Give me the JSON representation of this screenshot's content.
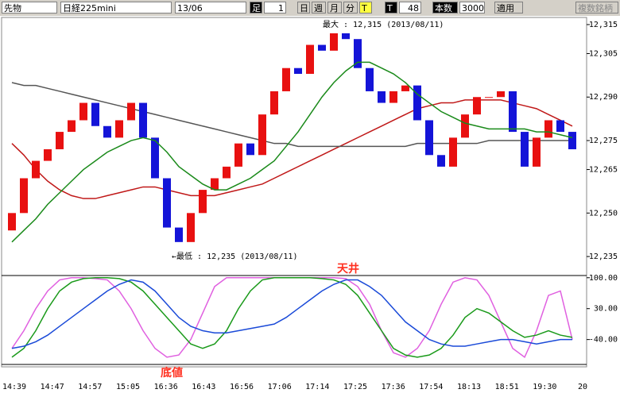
{
  "toolbar": [
    "先物",
    "日経225mini",
    "13/06",
    "足",
    "1",
    "日",
    "週",
    "月",
    "分",
    "T",
    "T",
    "48",
    "本数",
    "3000",
    "適用",
    "複数銘柄"
  ],
  "x_axis": {
    "labels": [
      "14:39",
      "14:47",
      "14:57",
      "15:05",
      "16:36",
      "16:43",
      "16:56",
      "17:06",
      "17:14",
      "17:25",
      "17:36",
      "17:54",
      "18:13",
      "18:51",
      "19:30",
      "20"
    ]
  },
  "chart_data": [
    {
      "type": "candlestick",
      "up_color": "#e81010",
      "down_color": "#1414d8",
      "open": [
        12244,
        12250,
        12262,
        12268,
        12272,
        12278,
        12282,
        12288,
        12280,
        12276,
        12282,
        12288,
        12276,
        12262,
        12245,
        12240,
        12250,
        12258,
        12262,
        12266,
        12274,
        12270,
        12284,
        12292,
        12300,
        12298,
        12308,
        12306,
        12312,
        12310,
        12300,
        12292,
        12288,
        12292,
        12294,
        12282,
        12270,
        12266,
        12276,
        12284,
        12290,
        12290,
        12292,
        12278,
        12266,
        12276,
        12282,
        12278
      ],
      "close": [
        12250,
        12262,
        12268,
        12272,
        12278,
        12282,
        12288,
        12280,
        12276,
        12282,
        12288,
        12276,
        12262,
        12245,
        12240,
        12250,
        12258,
        12262,
        12266,
        12274,
        12270,
        12284,
        12292,
        12300,
        12298,
        12308,
        12306,
        12312,
        12310,
        12300,
        12292,
        12288,
        12292,
        12294,
        12282,
        12270,
        12266,
        12276,
        12284,
        12290,
        12290,
        12292,
        12278,
        12266,
        12276,
        12282,
        12278,
        12272
      ],
      "series": [
        {
          "color": "#1a8a1a",
          "values": [
            12240,
            12244,
            12248,
            12253,
            12257,
            12261,
            12265,
            12268,
            12271,
            12273,
            12275,
            12276,
            12275,
            12271,
            12266,
            12263,
            12260,
            12258,
            12258,
            12260,
            12262,
            12265,
            12268,
            12273,
            12278,
            12284,
            12290,
            12295,
            12299,
            12302,
            12302,
            12300,
            12298,
            12295,
            12291,
            12288,
            12285,
            12283,
            12281,
            12280,
            12279,
            12279,
            12279,
            12279,
            12278,
            12278,
            12277,
            12276
          ]
        },
        {
          "color": "#c01818",
          "values": [
            12274,
            12270,
            12265,
            12261,
            12258,
            12256,
            12255,
            12255,
            12256,
            12257,
            12258,
            12259,
            12259,
            12258,
            12257,
            12256,
            12256,
            12256,
            12257,
            12258,
            12259,
            12260,
            12262,
            12264,
            12266,
            12268,
            12270,
            12272,
            12274,
            12276,
            12278,
            12280,
            12282,
            12284,
            12286,
            12287,
            12288,
            12288,
            12289,
            12289,
            12289,
            12289,
            12288,
            12287,
            12286,
            12284,
            12282,
            12280
          ]
        },
        {
          "color": "#555555",
          "values": [
            12295,
            12294,
            12294,
            12293,
            12292,
            12291,
            12290,
            12289,
            12288,
            12287,
            12286,
            12285,
            12284,
            12283,
            12282,
            12281,
            12280,
            12279,
            12278,
            12277,
            12276,
            12275,
            12274,
            12274,
            12273,
            12273,
            12273,
            12273,
            12273,
            12273,
            12273,
            12273,
            12273,
            12273,
            12274,
            12274,
            12274,
            12274,
            12274,
            12274,
            12275,
            12275,
            12275,
            12275,
            12275,
            12275,
            12275,
            12275
          ]
        }
      ],
      "ylim": [
        12229,
        12318
      ],
      "yticks": [
        {
          "value": 12315,
          "label": "12,315"
        },
        {
          "value": 12305,
          "label": "12,305"
        },
        {
          "value": 12290,
          "label": "12,290"
        },
        {
          "value": 12275,
          "label": "12,275"
        },
        {
          "value": 12265,
          "label": "12,265"
        },
        {
          "value": 12250,
          "label": "12,250"
        },
        {
          "value": 12235,
          "label": "12,235"
        }
      ],
      "max_label": "最大 : 12,315 (2013/08/11)",
      "min_label": "←最低 : 12,235 (2013/08/11)"
    },
    {
      "type": "line",
      "series": [
        {
          "color": "#e060e0",
          "values": [
            -60,
            -20,
            30,
            70,
            95,
            100,
            100,
            98,
            95,
            70,
            30,
            -20,
            -60,
            -80,
            -75,
            -40,
            20,
            80,
            100,
            100,
            100,
            100,
            100,
            100,
            100,
            100,
            100,
            100,
            98,
            80,
            40,
            -20,
            -70,
            -80,
            -60,
            -20,
            40,
            90,
            100,
            95,
            60,
            0,
            -60,
            -80,
            -20,
            60,
            70,
            -40
          ]
        },
        {
          "color": "#1a9a1a",
          "values": [
            -80,
            -60,
            -20,
            30,
            70,
            90,
            98,
            100,
            100,
            98,
            90,
            70,
            40,
            10,
            -20,
            -50,
            -60,
            -50,
            -20,
            30,
            70,
            95,
            100,
            100,
            100,
            100,
            98,
            95,
            85,
            60,
            20,
            -20,
            -60,
            -75,
            -80,
            -75,
            -60,
            -30,
            10,
            30,
            20,
            0,
            -20,
            -35,
            -30,
            -20,
            -30,
            -35
          ]
        },
        {
          "color": "#1a4ad8",
          "values": [
            -60,
            -55,
            -45,
            -30,
            -10,
            10,
            30,
            50,
            70,
            85,
            95,
            90,
            70,
            40,
            10,
            -10,
            -20,
            -25,
            -25,
            -20,
            -15,
            -10,
            -5,
            10,
            30,
            50,
            70,
            85,
            95,
            95,
            80,
            60,
            30,
            0,
            -20,
            -40,
            -50,
            -55,
            -55,
            -50,
            -45,
            -40,
            -40,
            -45,
            -50,
            -45,
            -40,
            -40
          ]
        }
      ],
      "ylim": [
        -100,
        105
      ],
      "yticks": [
        {
          "value": 100,
          "label": "100.00"
        },
        {
          "value": 30,
          "label": "30.00"
        },
        {
          "value": -40,
          "label": "-40.00"
        }
      ],
      "top_label": "天井",
      "bottom_label": "底値"
    }
  ]
}
